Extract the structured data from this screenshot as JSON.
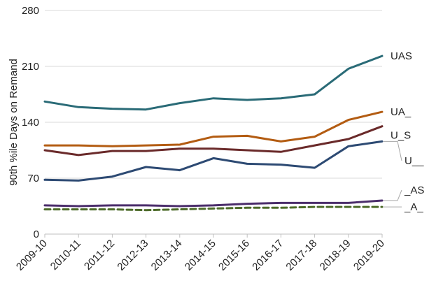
{
  "chart_data": {
    "type": "line",
    "title": "",
    "xlabel": "",
    "ylabel": "90th %ile Days on Remand",
    "ylim": [
      0,
      280
    ],
    "yticks": [
      0,
      70,
      140,
      210,
      280
    ],
    "grid": true,
    "categories": [
      "2009-10",
      "2010-11",
      "2011-12",
      "2012-13",
      "2013-14",
      "2014-15",
      "2015-16",
      "2016-17",
      "2017-18",
      "2018-19",
      "2019-20"
    ],
    "series": [
      {
        "name": "UAS",
        "color": "#2a6b77",
        "dashed": false,
        "values": [
          166,
          159,
          157,
          156,
          164,
          170,
          168,
          170,
          175,
          207,
          223
        ]
      },
      {
        "name": "UA_",
        "color": "#b35c12",
        "dashed": false,
        "values": [
          111,
          111,
          110,
          111,
          112,
          122,
          123,
          116,
          122,
          143,
          153
        ]
      },
      {
        "name": "U_S",
        "color": "#6a2a2a",
        "dashed": false,
        "values": [
          105,
          99,
          104,
          104,
          107,
          107,
          105,
          103,
          111,
          119,
          135
        ]
      },
      {
        "name": "U__",
        "color": "#2d4a73",
        "dashed": false,
        "values": [
          68,
          67,
          72,
          84,
          80,
          95,
          88,
          87,
          83,
          110,
          116
        ]
      },
      {
        "name": "_AS",
        "color": "#4b2d6b",
        "dashed": false,
        "values": [
          36,
          35,
          36,
          36,
          35,
          36,
          38,
          39,
          39,
          39,
          42
        ]
      },
      {
        "name": "_A_",
        "color": "#4d6b2a",
        "dashed": true,
        "values": [
          31,
          31,
          31,
          30,
          31,
          32,
          33,
          33,
          34,
          34,
          34
        ]
      }
    ]
  }
}
